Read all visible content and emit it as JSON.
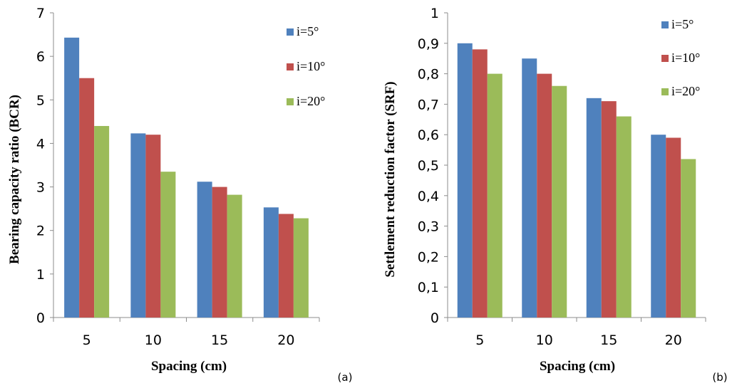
{
  "chart_data": [
    {
      "type": "bar",
      "panel_label": "(a)",
      "categories": [
        "5",
        "10",
        "15",
        "20"
      ],
      "series": [
        {
          "name": "i=5°",
          "color": "#4f81bd",
          "values": [
            6.43,
            4.23,
            3.12,
            2.53
          ]
        },
        {
          "name": "i=10°",
          "color": "#c0504d",
          "values": [
            5.5,
            4.2,
            3.0,
            2.38
          ]
        },
        {
          "name": "i=20°",
          "color": "#9bbb59",
          "values": [
            4.4,
            3.35,
            2.82,
            2.28
          ]
        }
      ],
      "xlabel": "Spacing (cm)",
      "ylabel": "Bearing capacity ratio (BCR)",
      "ylim": [
        0,
        7
      ],
      "yticks": [
        "0",
        "1",
        "2",
        "3",
        "4",
        "5",
        "6",
        "7"
      ],
      "legend_position": "top-right",
      "grid": false
    },
    {
      "type": "bar",
      "panel_label": "(b)",
      "categories": [
        "5",
        "10",
        "15",
        "20"
      ],
      "series": [
        {
          "name": "i=5°",
          "color": "#4f81bd",
          "values": [
            0.9,
            0.85,
            0.72,
            0.6
          ]
        },
        {
          "name": "i=10°",
          "color": "#c0504d",
          "values": [
            0.88,
            0.8,
            0.71,
            0.59
          ]
        },
        {
          "name": "i=20°",
          "color": "#9bbb59",
          "values": [
            0.8,
            0.76,
            0.66,
            0.52
          ]
        }
      ],
      "xlabel": "Spacing (cm)",
      "ylabel": "Settlement reduction factor (SRF)",
      "ylim": [
        0,
        1
      ],
      "yticks": [
        "0",
        "0,1",
        "0,2",
        "0,3",
        "0,4",
        "0,5",
        "0,6",
        "0,7",
        "0,8",
        "0,9",
        "1"
      ],
      "legend_position": "top-right",
      "grid": false
    }
  ]
}
